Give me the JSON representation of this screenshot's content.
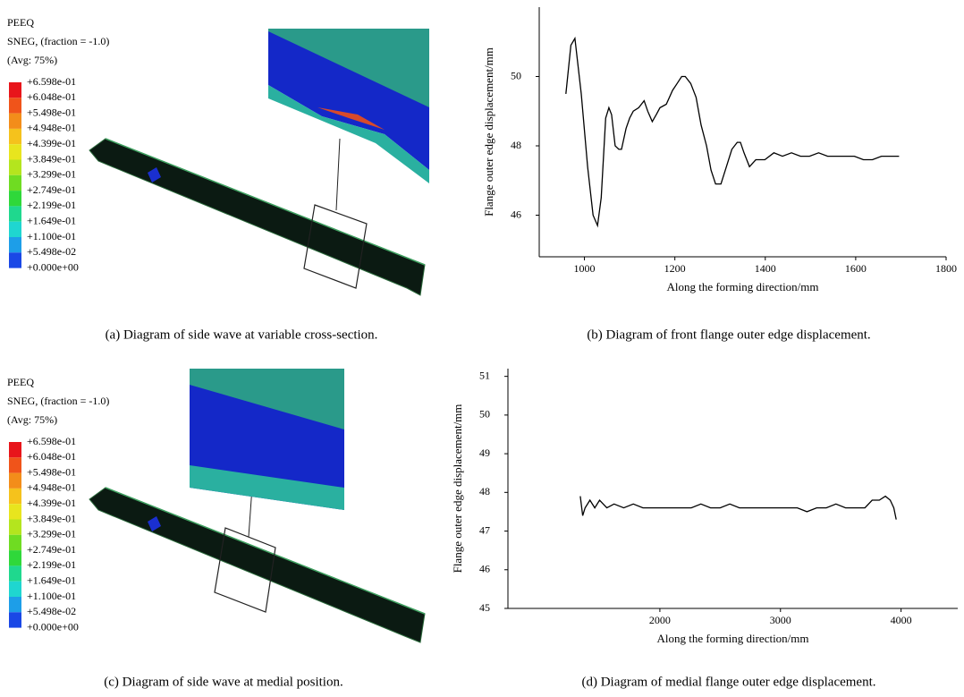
{
  "figures": [
    {
      "legend": {
        "title": [
          "PEEQ",
          "SNEG, (fraction = -1.0)",
          "(Avg: 75%)"
        ],
        "labels": [
          "+6.598e-01",
          "+6.048e-01",
          "+5.498e-01",
          "+4.948e-01",
          "+4.399e-01",
          "+3.849e-01",
          "+3.299e-01",
          "+2.749e-01",
          "+2.199e-01",
          "+1.649e-01",
          "+1.100e-01",
          "+5.498e-02",
          "+0.000e+00"
        ],
        "colors": [
          "#e8151b",
          "#f0541a",
          "#f38d1a",
          "#f5c21c",
          "#e8e51e",
          "#b4e51e",
          "#6fdc22",
          "#2fd83a",
          "#1fd88e",
          "#1fd6d0",
          "#1d9ee8",
          "#1a48e6"
        ]
      },
      "caption": "(a)  Diagram of side wave at variable cross-section."
    },
    {
      "legend": {
        "title": [
          "PEEQ",
          "SNEG, (fraction = -1.0)",
          "(Avg: 75%)"
        ],
        "labels": [
          "+6.598e-01",
          "+6.048e-01",
          "+5.498e-01",
          "+4.948e-01",
          "+4.399e-01",
          "+3.849e-01",
          "+3.299e-01",
          "+2.749e-01",
          "+2.199e-01",
          "+1.649e-01",
          "+1.100e-01",
          "+5.498e-02",
          "+0.000e+00"
        ],
        "colors": [
          "#e8151b",
          "#f0541a",
          "#f38d1a",
          "#f5c21c",
          "#e8e51e",
          "#b4e51e",
          "#6fdc22",
          "#2fd83a",
          "#1fd88e",
          "#1fd6d0",
          "#1d9ee8",
          "#1a48e6"
        ]
      },
      "caption": "(c)  Diagram of side wave at medial position."
    }
  ],
  "chart_data": [
    {
      "type": "line",
      "caption": "(b)  Diagram of front flange outer edge displacement.",
      "x_label": "Along the forming direction/mm",
      "y_label": "Flange outer edge displacement/mm",
      "color": "#000000",
      "x": [
        959,
        970,
        979,
        993,
        1007,
        1019,
        1029,
        1037,
        1047,
        1054,
        1060,
        1068,
        1076,
        1082,
        1092,
        1100,
        1108,
        1120,
        1132,
        1140,
        1150,
        1159,
        1167,
        1181,
        1195,
        1205,
        1215,
        1223,
        1235,
        1247,
        1258,
        1270,
        1280,
        1290,
        1302,
        1314,
        1326,
        1338,
        1345,
        1353,
        1365,
        1379,
        1399,
        1419,
        1438,
        1458,
        1478,
        1498,
        1518,
        1538,
        1558,
        1577,
        1597,
        1617,
        1637,
        1657,
        1676,
        1696
      ],
      "values": [
        49.5,
        50.9,
        51.1,
        49.5,
        47.4,
        46.0,
        45.7,
        46.5,
        48.8,
        49.1,
        48.9,
        48.0,
        47.9,
        47.9,
        48.5,
        48.8,
        49.0,
        49.1,
        49.3,
        49.0,
        48.7,
        48.9,
        49.1,
        49.2,
        49.6,
        49.8,
        50.0,
        50.0,
        49.8,
        49.4,
        48.6,
        48.0,
        47.3,
        46.9,
        46.9,
        47.4,
        47.9,
        48.1,
        48.1,
        47.8,
        47.4,
        47.6,
        47.6,
        47.8,
        47.7,
        47.8,
        47.7,
        47.7,
        47.8,
        47.7,
        47.7,
        47.7,
        47.7,
        47.6,
        47.6,
        47.7,
        47.7,
        47.7
      ],
      "xlim": [
        900,
        1800
      ],
      "xticks": [
        1000,
        1200,
        1400,
        1600,
        1800
      ],
      "ylim": [
        44.8,
        52
      ],
      "yticks": [
        46,
        48,
        50
      ]
    },
    {
      "type": "line",
      "caption": "(d)  Diagram of medial flange outer edge displacement.",
      "x_label": "Along the forming direction/mm",
      "y_label": "Flange outer edge displacement/mm",
      "color": "#000000",
      "x": [
        1340,
        1360,
        1380,
        1420,
        1460,
        1500,
        1560,
        1620,
        1700,
        1780,
        1860,
        1940,
        2020,
        2100,
        2180,
        2260,
        2340,
        2420,
        2500,
        2580,
        2660,
        2740,
        2820,
        2900,
        2980,
        3060,
        3140,
        3220,
        3300,
        3380,
        3460,
        3540,
        3620,
        3700,
        3760,
        3820,
        3870,
        3910,
        3940,
        3960
      ],
      "values": [
        47.9,
        47.4,
        47.6,
        47.8,
        47.6,
        47.8,
        47.6,
        47.7,
        47.6,
        47.7,
        47.6,
        47.6,
        47.6,
        47.6,
        47.6,
        47.6,
        47.7,
        47.6,
        47.6,
        47.7,
        47.6,
        47.6,
        47.6,
        47.6,
        47.6,
        47.6,
        47.6,
        47.5,
        47.6,
        47.6,
        47.7,
        47.6,
        47.6,
        47.6,
        47.8,
        47.8,
        47.9,
        47.8,
        47.6,
        47.3
      ],
      "xlim": [
        740,
        4470
      ],
      "xticks": [
        2000,
        3000,
        4000
      ],
      "ylim": [
        45,
        51.2
      ],
      "yticks": [
        45,
        46,
        47,
        48,
        49,
        50,
        51
      ]
    }
  ]
}
